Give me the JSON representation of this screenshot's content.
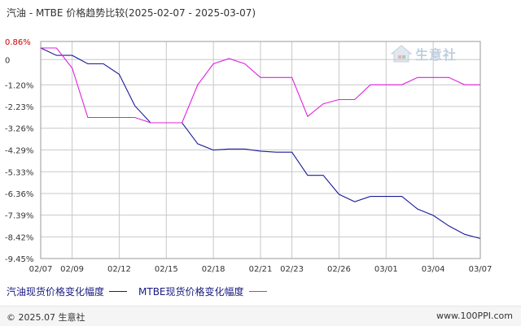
{
  "title": "汽油 - MTBE 价格趋势比较(2025-02-07 - 2025-03-07)",
  "legend": {
    "series1": "汽油现货价格变化幅度",
    "series2": "MTBE现货价格变化幅度"
  },
  "footer": {
    "copyright": "© 2025.07 生意社",
    "url": "www.100PPI.com"
  },
  "watermark": {
    "text": "生意社"
  },
  "colors": {
    "series1": "#1a1a9c",
    "series2": "#e020e0",
    "grid": "#c8c8c8"
  },
  "chart_data": {
    "type": "line",
    "y_ticks": [
      "0.86%",
      "0",
      "-1.20%",
      "-2.23%",
      "-3.26%",
      "-4.29%",
      "-5.33%",
      "-6.36%",
      "-7.39%",
      "-8.42%",
      "-9.45%"
    ],
    "y_tick_values": [
      0.86,
      0,
      -1.2,
      -2.23,
      -3.26,
      -4.29,
      -5.33,
      -6.36,
      -7.39,
      -8.42,
      -9.45
    ],
    "ylim": [
      -9.45,
      0.86
    ],
    "x_tick_labels": [
      "02/07",
      "02/09",
      "02/12",
      "02/15",
      "02/18",
      "02/21",
      "02/23",
      "02/26",
      "03/01",
      "03/04",
      "03/07"
    ],
    "x_tick_days": [
      0,
      2,
      5,
      8,
      11,
      14,
      16,
      19,
      22,
      25,
      28
    ],
    "xlim": [
      0,
      28
    ],
    "grid": true,
    "legend_position": "bottom",
    "series": [
      {
        "name": "汽油现货价格变化幅度",
        "color": "#1a1a9c",
        "points": [
          [
            0,
            0.55
          ],
          [
            1,
            0.2
          ],
          [
            2,
            0.2
          ],
          [
            3,
            -0.2
          ],
          [
            4,
            -0.2
          ],
          [
            5,
            -0.7
          ],
          [
            6,
            -2.2
          ],
          [
            7,
            -3.0
          ],
          [
            8,
            -3.0
          ],
          [
            9,
            -3.0
          ],
          [
            10,
            -4.0
          ],
          [
            11,
            -4.3
          ],
          [
            12,
            -4.25
          ],
          [
            13,
            -4.25
          ],
          [
            14,
            -4.35
          ],
          [
            15,
            -4.4
          ],
          [
            16,
            -4.4
          ],
          [
            17,
            -5.5
          ],
          [
            18,
            -5.5
          ],
          [
            19,
            -6.4
          ],
          [
            20,
            -6.75
          ],
          [
            21,
            -6.5
          ],
          [
            22,
            -6.5
          ],
          [
            23,
            -6.5
          ],
          [
            24,
            -7.1
          ],
          [
            25,
            -7.4
          ],
          [
            26,
            -7.9
          ],
          [
            27,
            -8.3
          ],
          [
            28,
            -8.5
          ]
        ]
      },
      {
        "name": "MTBE现货价格变化幅度",
        "color": "#e020e0",
        "points": [
          [
            0,
            0.55
          ],
          [
            1,
            0.55
          ],
          [
            2,
            -0.4
          ],
          [
            3,
            -2.75
          ],
          [
            4,
            -2.75
          ],
          [
            5,
            -2.75
          ],
          [
            6,
            -2.75
          ],
          [
            7,
            -3.0
          ],
          [
            8,
            -3.0
          ],
          [
            9,
            -3.0
          ],
          [
            10,
            -1.2
          ],
          [
            11,
            -0.2
          ],
          [
            12,
            0.05
          ],
          [
            13,
            -0.2
          ],
          [
            14,
            -0.85
          ],
          [
            15,
            -0.85
          ],
          [
            16,
            -0.85
          ],
          [
            17,
            -2.7
          ],
          [
            18,
            -2.1
          ],
          [
            19,
            -1.9
          ],
          [
            20,
            -1.9
          ],
          [
            21,
            -1.2
          ],
          [
            22,
            -1.2
          ],
          [
            23,
            -1.2
          ],
          [
            24,
            -0.85
          ],
          [
            25,
            -0.85
          ],
          [
            26,
            -0.85
          ],
          [
            27,
            -1.2
          ],
          [
            28,
            -1.2
          ]
        ]
      }
    ]
  }
}
